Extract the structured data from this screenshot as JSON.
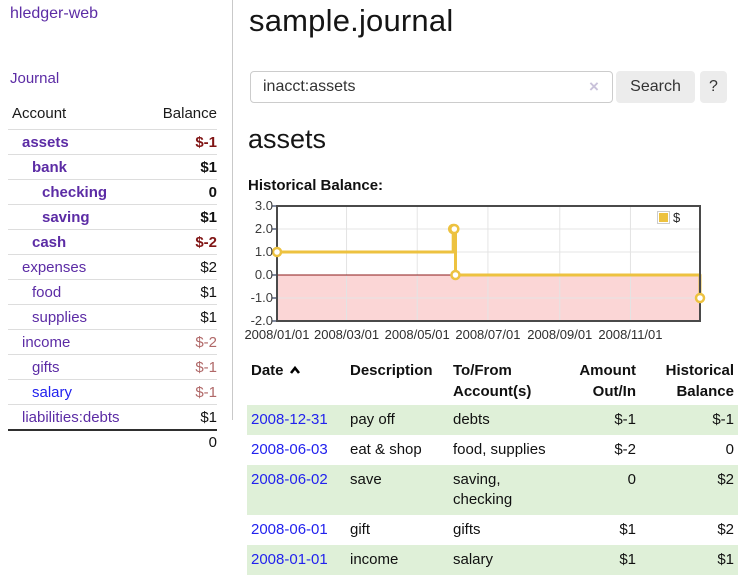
{
  "colors": {
    "purple": "#5c2ca5",
    "link_blue": "#2222ee",
    "negative_strong": "#801515",
    "negative_soft": "#b06868",
    "row_green": "#dff0d8",
    "chart_gold": "#EDC240",
    "chart_pink": "#fbd6d6",
    "zero_line": "#8b1a1a"
  },
  "sidebar": {
    "brand": "hledger-web",
    "nav": {
      "journal": "Journal"
    },
    "accounts_table": {
      "headers": {
        "account": "Account",
        "balance": "Balance"
      },
      "rows": [
        {
          "name": "assets",
          "balance": "$-1",
          "level": 0,
          "bold": true,
          "balance_style": "neg-strong"
        },
        {
          "name": "bank",
          "balance": "$1",
          "level": 1,
          "bold": true,
          "balance_style": "plain"
        },
        {
          "name": "checking",
          "balance": "0",
          "level": 2,
          "bold": true,
          "balance_style": "plain"
        },
        {
          "name": "saving",
          "balance": "$1",
          "level": 2,
          "bold": true,
          "balance_style": "plain"
        },
        {
          "name": "cash",
          "balance": "$-2",
          "level": 1,
          "bold": true,
          "balance_style": "neg-strong"
        },
        {
          "name": "expenses",
          "balance": "$2",
          "level": 0,
          "bold": false,
          "balance_style": "plain"
        },
        {
          "name": "food",
          "balance": "$1",
          "level": 1,
          "bold": false,
          "balance_style": "plain"
        },
        {
          "name": "supplies",
          "balance": "$1",
          "level": 1,
          "bold": false,
          "balance_style": "plain"
        },
        {
          "name": "income",
          "balance": "$-2",
          "level": 0,
          "bold": false,
          "balance_style": "neg-soft"
        },
        {
          "name": "gifts",
          "balance": "$-1",
          "level": 1,
          "bold": false,
          "balance_style": "neg-soft"
        },
        {
          "name": "salary",
          "balance": "$-1",
          "level": 1,
          "bold": false,
          "balance_style": "neg-soft",
          "link_style": "blue"
        },
        {
          "name": "liabilities:debts",
          "balance": "$1",
          "level": 0,
          "bold": false,
          "balance_style": "plain"
        }
      ],
      "total": "0"
    }
  },
  "main": {
    "title": "sample.journal",
    "search": {
      "value": "inacct:assets",
      "clear_icon": "×",
      "button": "Search",
      "help_button": "?"
    },
    "account_heading": "assets",
    "chart_label": "Historical Balance:",
    "register": {
      "headers": [
        "Date",
        "Description",
        "To/From\nAccount(s)",
        "Amount\nOut/In",
        "Historical\nBalance"
      ],
      "rows": [
        {
          "date": "2008-12-31",
          "description": "pay off",
          "accounts": "debts",
          "amount": "$-1",
          "amount_style": "neg",
          "balance": "$-1",
          "balance_style": "neg",
          "highlight": true
        },
        {
          "date": "2008-06-03",
          "description": "eat & shop",
          "accounts": "food, supplies",
          "amount": "$-2",
          "amount_style": "neg",
          "balance": "0",
          "balance_style": "plain",
          "highlight": false
        },
        {
          "date": "2008-06-02",
          "description": "save",
          "accounts": "saving,\nchecking",
          "amount": "0",
          "amount_style": "plain",
          "balance": "$2",
          "balance_style": "plain",
          "highlight": true
        },
        {
          "date": "2008-06-01",
          "description": "gift",
          "accounts": "gifts",
          "amount": "$1",
          "amount_style": "plain",
          "balance": "$2",
          "balance_style": "plain",
          "highlight": false
        },
        {
          "date": "2008-01-01",
          "description": "income",
          "accounts": "salary",
          "amount": "$1",
          "amount_style": "plain",
          "balance": "$1",
          "balance_style": "plain",
          "highlight": true
        }
      ]
    }
  },
  "chart_data": {
    "type": "line",
    "step": true,
    "title": "Historical Balance",
    "series": [
      {
        "name": "$",
        "color": "#EDC240",
        "points": [
          [
            "2008-01-01",
            1
          ],
          [
            "2008-06-01",
            2
          ],
          [
            "2008-06-02",
            2
          ],
          [
            "2008-06-03",
            0
          ],
          [
            "2008-12-31",
            -1
          ]
        ]
      }
    ],
    "xrange": [
      "2008-01-01",
      "2008-12-31"
    ],
    "ylim": [
      -2,
      3
    ],
    "y_ticks": [
      {
        "label": "3.0",
        "v": 3
      },
      {
        "label": "2.0",
        "v": 2
      },
      {
        "label": "1.0",
        "v": 1
      },
      {
        "label": "0.0",
        "v": 0
      },
      {
        "label": "-1.0",
        "v": -1
      },
      {
        "label": "-2.0",
        "v": -2
      }
    ],
    "x_ticks": [
      {
        "label": "2008/01/01",
        "date": "2008-01-01"
      },
      {
        "label": "2008/03/01",
        "date": "2008-03-01"
      },
      {
        "label": "2008/05/01",
        "date": "2008-05-01"
      },
      {
        "label": "2008/07/01",
        "date": "2008-07-01"
      },
      {
        "label": "2008/09/01",
        "date": "2008-09-01"
      },
      {
        "label": "2008/11/01",
        "date": "2008-11-01"
      }
    ],
    "grid": true,
    "negative_fill": "#fbd6d6",
    "zero_line_color": "#8b1a1a",
    "legend": {
      "label": "$",
      "position": "top-right"
    }
  }
}
